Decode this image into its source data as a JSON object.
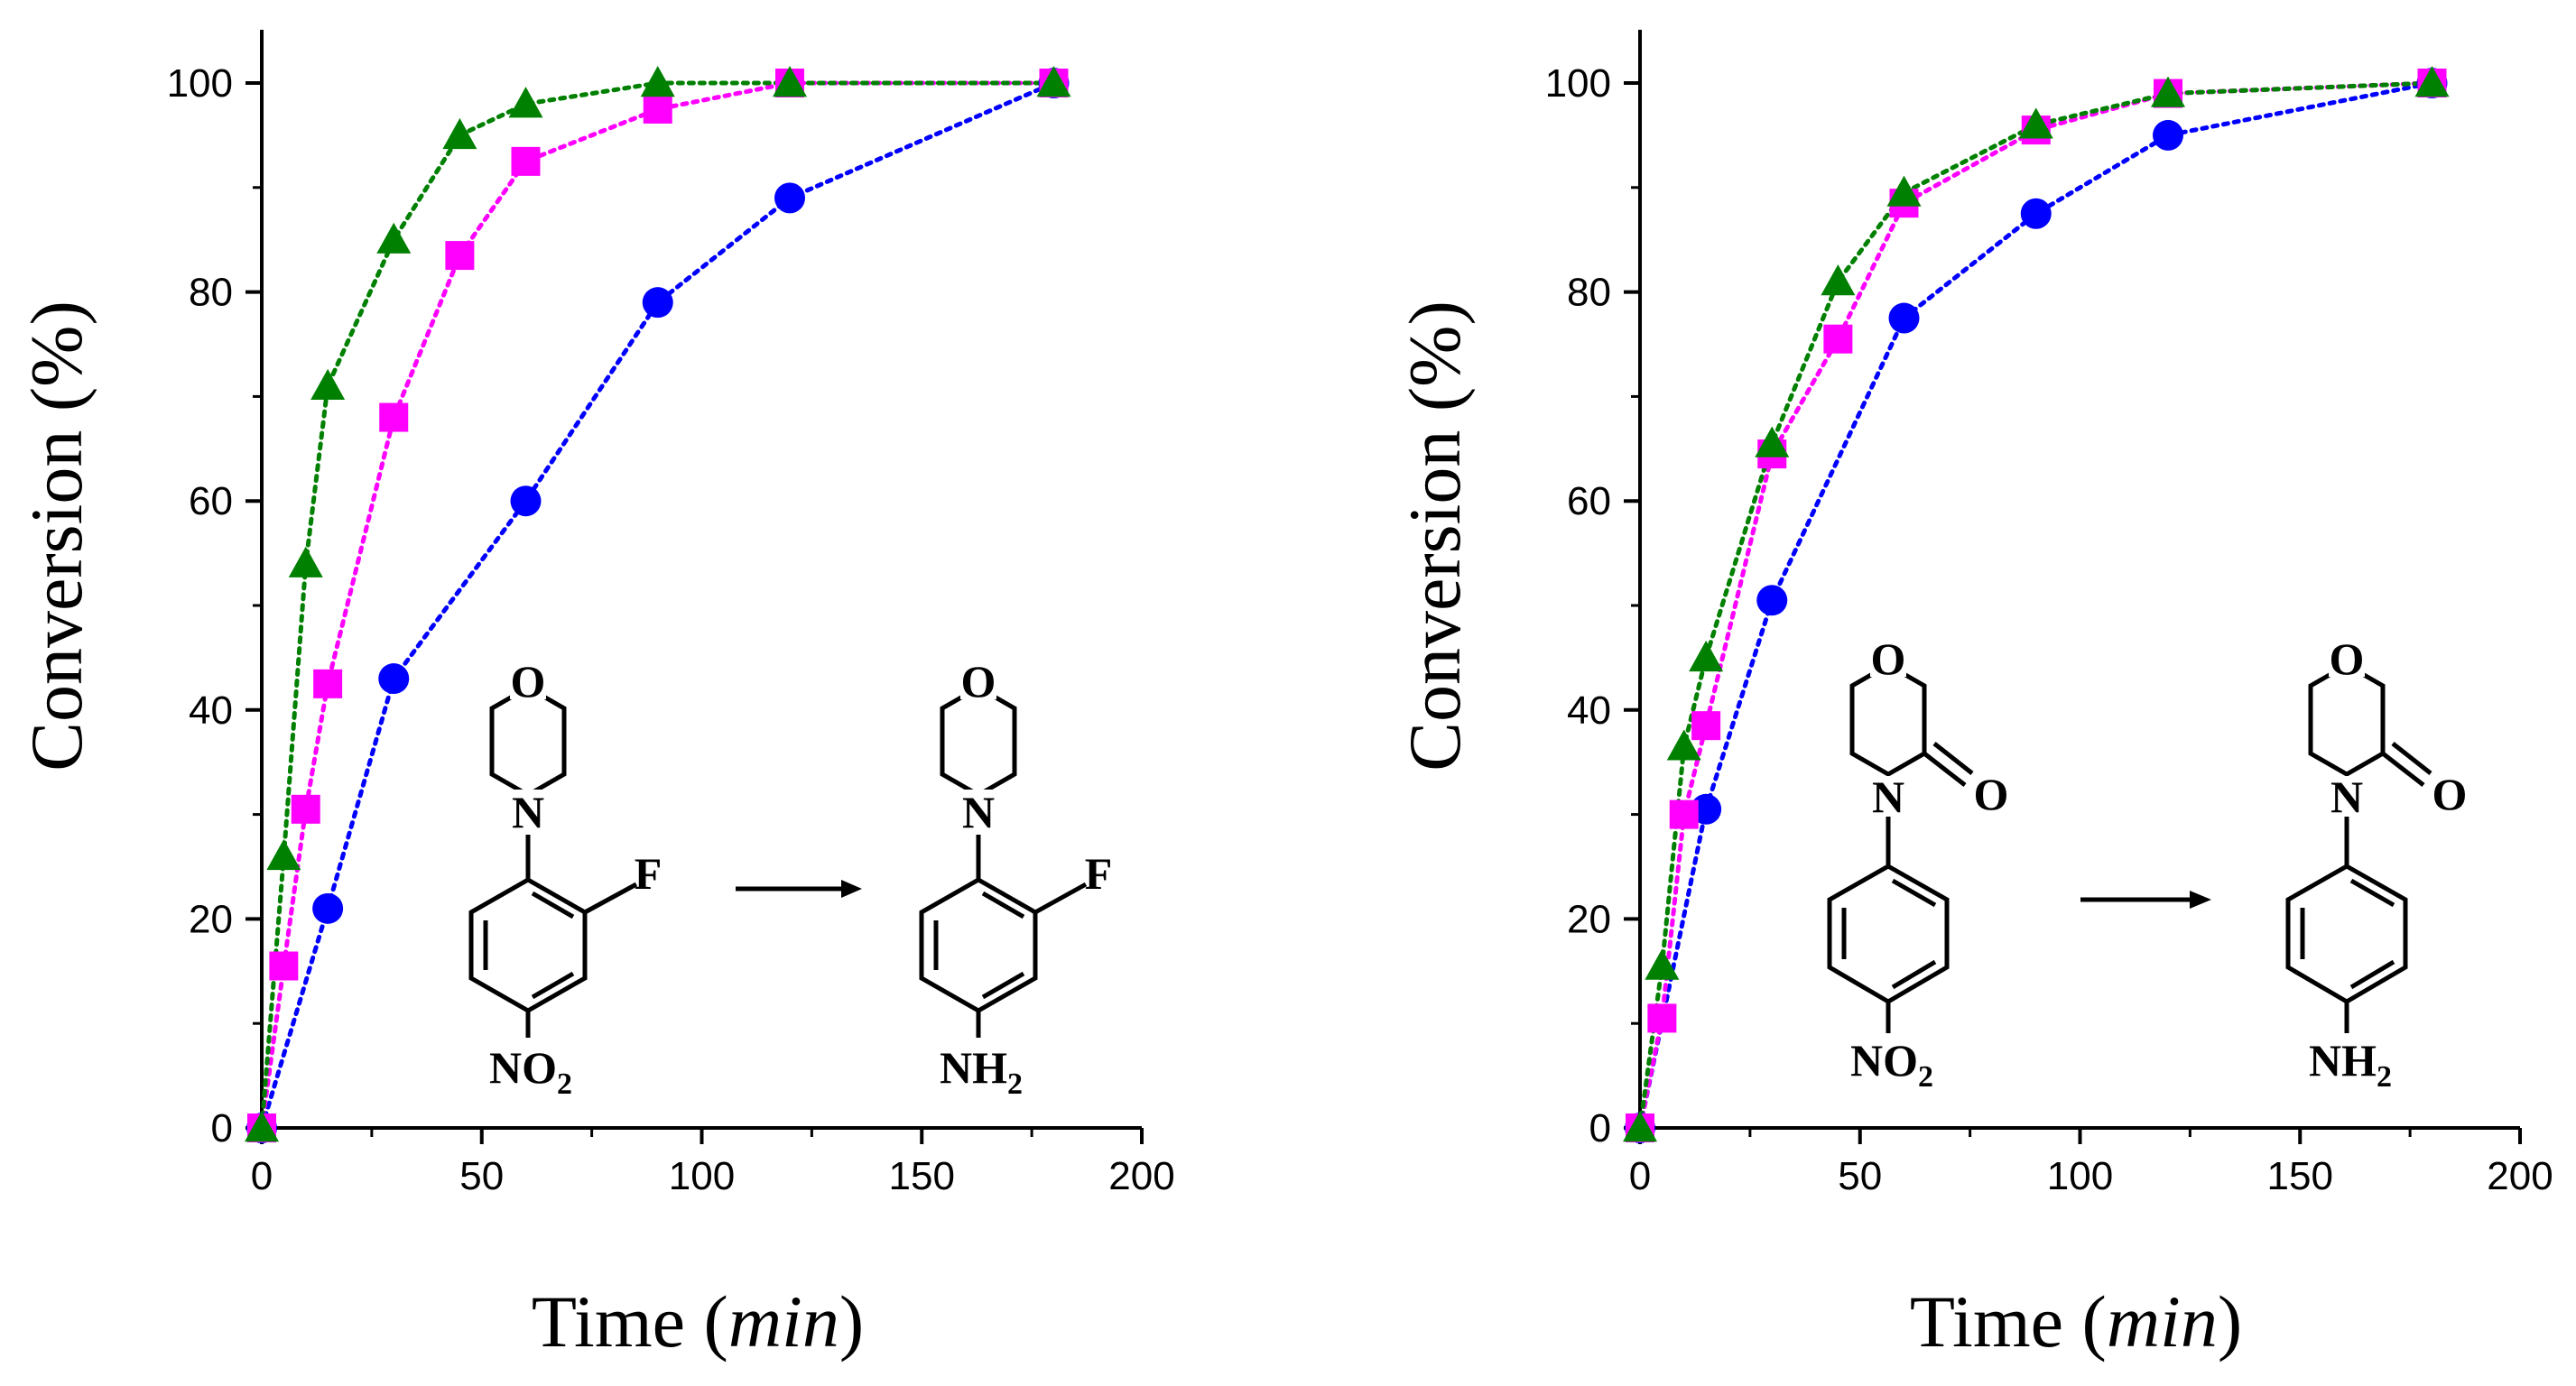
{
  "chart_data": [
    {
      "type": "scatter",
      "title": "",
      "xlabel": "Time",
      "xlabel_unit": "min",
      "ylabel": "Conversion (%)",
      "xlim": [
        0,
        200
      ],
      "ylim": [
        0,
        100
      ],
      "xticks": [
        0,
        50,
        100,
        150,
        200
      ],
      "yticks": [
        0,
        20,
        40,
        60,
        80,
        100
      ],
      "grid": false,
      "series": [
        {
          "name": "circle-blue",
          "color": "#0000ff",
          "marker": "circle",
          "x": [
            0,
            15,
            30,
            60,
            90,
            120,
            180
          ],
          "values": [
            0,
            21,
            43,
            60,
            79,
            89,
            100
          ]
        },
        {
          "name": "square-magenta",
          "color": "#ff00ff",
          "marker": "square",
          "x": [
            0,
            5,
            10,
            15,
            30,
            45,
            60,
            90,
            120,
            180
          ],
          "values": [
            0,
            15.5,
            30.5,
            42.5,
            68,
            83.5,
            92.5,
            97.5,
            100,
            100
          ]
        },
        {
          "name": "triangle-green",
          "color": "#008000",
          "marker": "triangle",
          "x": [
            0,
            5,
            10,
            15,
            30,
            45,
            60,
            90,
            120,
            180
          ],
          "values": [
            0,
            26,
            54,
            71,
            85,
            95,
            98,
            100,
            100,
            100
          ]
        }
      ],
      "scheme": {
        "reactant": {
          "ring_heteroatom": "O",
          "amine_n": "N",
          "substituent": "F",
          "para_group": "NO",
          "para_sub": "2"
        },
        "product": {
          "ring_heteroatom": "O",
          "amine_n": "N",
          "substituent": "F",
          "para_group": "NH",
          "para_sub": "2"
        }
      }
    },
    {
      "type": "scatter",
      "title": "",
      "xlabel": "Time",
      "xlabel_unit": "min",
      "ylabel": "Conversion (%)",
      "xlim": [
        0,
        200
      ],
      "ylim": [
        0,
        100
      ],
      "xticks": [
        0,
        50,
        100,
        150,
        200
      ],
      "yticks": [
        0,
        20,
        40,
        60,
        80,
        100
      ],
      "grid": false,
      "series": [
        {
          "name": "circle-blue",
          "color": "#0000ff",
          "marker": "circle",
          "x": [
            0,
            15,
            30,
            60,
            90,
            120,
            180
          ],
          "values": [
            0,
            30.5,
            50.5,
            77.5,
            87.5,
            95,
            100
          ]
        },
        {
          "name": "square-magenta",
          "color": "#ff00ff",
          "marker": "square",
          "x": [
            0,
            5,
            10,
            15,
            30,
            45,
            60,
            90,
            120,
            180
          ],
          "values": [
            0,
            10.5,
            30,
            38.5,
            64.5,
            75.5,
            88.5,
            95.5,
            99,
            100
          ]
        },
        {
          "name": "triangle-green",
          "color": "#008000",
          "marker": "triangle",
          "x": [
            0,
            5,
            10,
            15,
            30,
            45,
            60,
            90,
            120,
            180
          ],
          "values": [
            0,
            15.5,
            36.5,
            45,
            65.5,
            81,
            89.5,
            96,
            99,
            100
          ]
        }
      ],
      "scheme": {
        "reactant": {
          "ring_heteroatom": "O",
          "amine_n": "N",
          "carbonyl_o": "O",
          "para_group": "NO",
          "para_sub": "2"
        },
        "product": {
          "ring_heteroatom": "O",
          "amine_n": "N",
          "carbonyl_o": "O",
          "para_group": "NH",
          "para_sub": "2"
        }
      }
    }
  ]
}
